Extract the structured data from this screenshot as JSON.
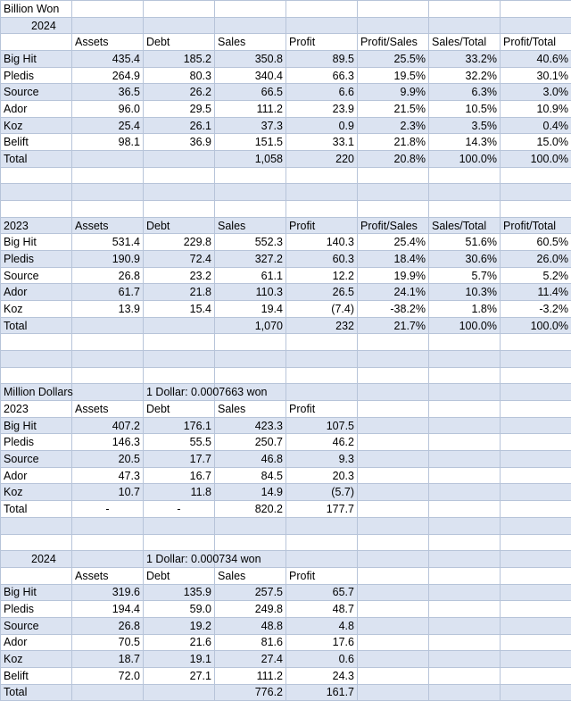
{
  "rows": [
    [
      "Billion Won",
      "",
      "",
      "",
      "",
      "",
      "",
      ""
    ],
    [
      "2024",
      "",
      "",
      "",
      "",
      "",
      "",
      ""
    ],
    [
      "",
      "Assets",
      "Debt",
      "Sales",
      "Profit",
      "Profit/Sales",
      "Sales/Total",
      "Profit/Total"
    ],
    [
      "Big Hit",
      "435.4",
      "185.2",
      "350.8",
      "89.5",
      "25.5%",
      "33.2%",
      "40.6%"
    ],
    [
      "Pledis",
      "264.9",
      "80.3",
      "340.4",
      "66.3",
      "19.5%",
      "32.2%",
      "30.1%"
    ],
    [
      "Source",
      "36.5",
      "26.2",
      "66.5",
      "6.6",
      "9.9%",
      "6.3%",
      "3.0%"
    ],
    [
      "Ador",
      "96.0",
      "29.5",
      "111.2",
      "23.9",
      "21.5%",
      "10.5%",
      "10.9%"
    ],
    [
      "Koz",
      "25.4",
      "26.1",
      "37.3",
      "0.9",
      "2.3%",
      "3.5%",
      "0.4%"
    ],
    [
      "Belift",
      "98.1",
      "36.9",
      "151.5",
      "33.1",
      "21.8%",
      "14.3%",
      "15.0%"
    ],
    [
      "Total",
      "",
      "",
      "1,058",
      "220",
      "20.8%",
      "100.0%",
      "100.0%"
    ],
    [
      "",
      "",
      "",
      "",
      "",
      "",
      "",
      ""
    ],
    [
      "",
      "",
      "",
      "",
      "",
      "",
      "",
      ""
    ],
    [
      "",
      "",
      "",
      "",
      "",
      "",
      "",
      ""
    ],
    [
      "2023",
      "Assets",
      "Debt",
      "Sales",
      "Profit",
      "Profit/Sales",
      "Sales/Total",
      "Profit/Total"
    ],
    [
      "Big Hit",
      "531.4",
      "229.8",
      "552.3",
      "140.3",
      "25.4%",
      "51.6%",
      "60.5%"
    ],
    [
      "Pledis",
      "190.9",
      "72.4",
      "327.2",
      "60.3",
      "18.4%",
      "30.6%",
      "26.0%"
    ],
    [
      "Source",
      "26.8",
      "23.2",
      "61.1",
      "12.2",
      "19.9%",
      "5.7%",
      "5.2%"
    ],
    [
      "Ador",
      "61.7",
      "21.8",
      "110.3",
      "26.5",
      "24.1%",
      "10.3%",
      "11.4%"
    ],
    [
      "Koz",
      "13.9",
      "15.4",
      "19.4",
      "(7.4)",
      "-38.2%",
      "1.8%",
      "-3.2%"
    ],
    [
      "Total",
      "",
      "",
      "1,070",
      "232",
      "21.7%",
      "100.0%",
      "100.0%"
    ],
    [
      "",
      "",
      "",
      "",
      "",
      "",
      "",
      ""
    ],
    [
      "",
      "",
      "",
      "",
      "",
      "",
      "",
      ""
    ],
    [
      "",
      "",
      "",
      "",
      "",
      "",
      "",
      ""
    ],
    [
      "Million Dollars",
      "",
      "1 Dollar: 0.0007663 won",
      "",
      "",
      "",
      "",
      ""
    ],
    [
      "2023",
      "Assets",
      "Debt",
      "Sales",
      "Profit",
      "",
      "",
      ""
    ],
    [
      "Big Hit",
      "407.2",
      "176.1",
      "423.3",
      "107.5",
      "",
      "",
      ""
    ],
    [
      "Pledis",
      "146.3",
      "55.5",
      "250.7",
      "46.2",
      "",
      "",
      ""
    ],
    [
      "Source",
      "20.5",
      "17.7",
      "46.8",
      "9.3",
      "",
      "",
      ""
    ],
    [
      "Ador",
      "47.3",
      "16.7",
      "84.5",
      "20.3",
      "",
      "",
      ""
    ],
    [
      "Koz",
      "10.7",
      "11.8",
      "14.9",
      "(5.7)",
      "",
      "",
      ""
    ],
    [
      "Total",
      "-",
      "-",
      "820.2",
      "177.7",
      "",
      "",
      ""
    ],
    [
      "",
      "",
      "",
      "",
      "",
      "",
      "",
      ""
    ],
    [
      "",
      "",
      "",
      "",
      "",
      "",
      "",
      ""
    ],
    [
      "2024",
      "",
      "1 Dollar: 0.000734 won",
      "",
      "",
      "",
      "",
      ""
    ],
    [
      "",
      "Assets",
      "Debt",
      "Sales",
      "Profit",
      "",
      "",
      ""
    ],
    [
      "Big Hit",
      "319.6",
      "135.9",
      "257.5",
      "65.7",
      "",
      "",
      ""
    ],
    [
      "Pledis",
      "194.4",
      "59.0",
      "249.8",
      "48.7",
      "",
      "",
      ""
    ],
    [
      "Source",
      "26.8",
      "19.2",
      "48.8",
      "4.8",
      "",
      "",
      ""
    ],
    [
      "Ador",
      "70.5",
      "21.6",
      "81.6",
      "17.6",
      "",
      "",
      ""
    ],
    [
      "Koz",
      "18.7",
      "19.1",
      "27.4",
      "0.6",
      "",
      "",
      ""
    ],
    [
      "Belift",
      "72.0",
      "27.1",
      "111.2",
      "24.3",
      "",
      "",
      ""
    ],
    [
      "Total",
      "",
      "",
      "776.2",
      "161.7",
      "",
      "",
      ""
    ]
  ]
}
